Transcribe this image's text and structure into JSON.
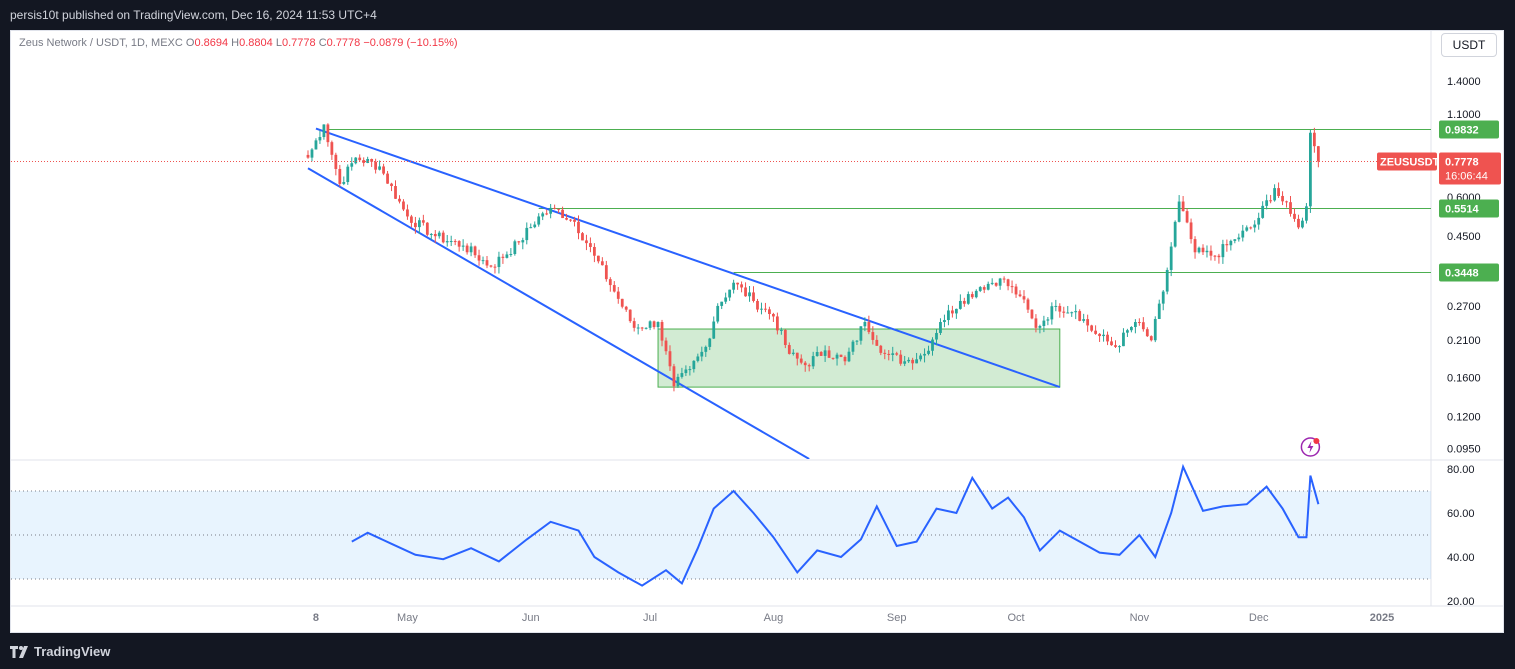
{
  "header": {
    "publish_text": "persis10t published on TradingView.com, Dec 16, 2024 11:53 UTC+4"
  },
  "legend": {
    "pair": "Zeus Network / USDT, 1D, MEXC",
    "o_label": "O",
    "o_value": "0.8694",
    "h_label": "H",
    "h_value": "0.8804",
    "l_label": "L",
    "l_value": "0.7778",
    "c_label": "C",
    "c_value": "0.7778",
    "change": "−0.0879 (−10.15%)"
  },
  "currency_button": "USDT",
  "footer": {
    "brand": "TradingView"
  },
  "colors": {
    "up": "#26a69a",
    "down": "#ef5350",
    "trend": "#2962ff",
    "level": "#4caf50",
    "rsi": "#2962ff"
  },
  "chart_data": [
    {
      "type": "candlestick",
      "symbol": "ZEUSUSDT",
      "scale": "log",
      "ylim": [
        0.088,
        1.6
      ],
      "y_ticks": [
        "1.4000",
        "1.1000",
        "0.6000",
        "0.4500",
        "0.2700",
        "0.2100",
        "0.1600",
        "0.1200",
        "0.0950"
      ],
      "x_ticks": [
        "8",
        "May",
        "Jun",
        "Jul",
        "Aug",
        "Sep",
        "Oct",
        "Nov",
        "Dec",
        "2025"
      ],
      "last_price": {
        "symbol": "ZEUSUSDT",
        "price": "0.7778",
        "countdown": "16:06:44"
      },
      "levels": [
        {
          "label": "0.9832",
          "value": 0.9832
        },
        {
          "label": "0.5514",
          "value": 0.5514
        },
        {
          "label": "0.3448",
          "value": 0.3448
        }
      ],
      "trendlines": [
        {
          "from": [
            "2024-04-08",
            0.99
          ],
          "to": [
            "2024-10-12",
            0.149
          ]
        },
        {
          "from": [
            "2024-04-06",
            0.74
          ],
          "to": [
            "2024-08-10",
            0.088
          ]
        }
      ],
      "zone": {
        "from": "2024-07-03",
        "to": "2024-10-12",
        "top": 0.228,
        "bottom": 0.149
      },
      "closes": [
        [
          "2024-04-06",
          0.8
        ],
        [
          "2024-04-10",
          1.02
        ],
        [
          "2024-04-14",
          0.66
        ],
        [
          "2024-04-18",
          0.8
        ],
        [
          "2024-04-24",
          0.75
        ],
        [
          "2024-05-01",
          0.52
        ],
        [
          "2024-05-08",
          0.45
        ],
        [
          "2024-05-15",
          0.42
        ],
        [
          "2024-05-22",
          0.36
        ],
        [
          "2024-05-29",
          0.43
        ],
        [
          "2024-06-03",
          0.52
        ],
        [
          "2024-06-07",
          0.55
        ],
        [
          "2024-06-12",
          0.5
        ],
        [
          "2024-06-17",
          0.39
        ],
        [
          "2024-06-22",
          0.3
        ],
        [
          "2024-06-27",
          0.23
        ],
        [
          "2024-07-03",
          0.24
        ],
        [
          "2024-07-07",
          0.15
        ],
        [
          "2024-07-11",
          0.17
        ],
        [
          "2024-07-15",
          0.2
        ],
        [
          "2024-07-18",
          0.27
        ],
        [
          "2024-07-22",
          0.32
        ],
        [
          "2024-07-27",
          0.28
        ],
        [
          "2024-08-01",
          0.25
        ],
        [
          "2024-08-05",
          0.19
        ],
        [
          "2024-08-09",
          0.175
        ],
        [
          "2024-08-14",
          0.195
        ],
        [
          "2024-08-19",
          0.18
        ],
        [
          "2024-08-24",
          0.24
        ],
        [
          "2024-08-29",
          0.19
        ],
        [
          "2024-09-03",
          0.18
        ],
        [
          "2024-09-08",
          0.19
        ],
        [
          "2024-09-12",
          0.24
        ],
        [
          "2024-09-17",
          0.28
        ],
        [
          "2024-09-22",
          0.31
        ],
        [
          "2024-09-27",
          0.33
        ],
        [
          "2024-10-02",
          0.29
        ],
        [
          "2024-10-06",
          0.23
        ],
        [
          "2024-10-11",
          0.27
        ],
        [
          "2024-10-16",
          0.26
        ],
        [
          "2024-10-21",
          0.22
        ],
        [
          "2024-10-26",
          0.2
        ],
        [
          "2024-10-31",
          0.24
        ],
        [
          "2024-11-04",
          0.21
        ],
        [
          "2024-11-07",
          0.3
        ],
        [
          "2024-11-11",
          0.58
        ],
        [
          "2024-11-15",
          0.4
        ],
        [
          "2024-11-20",
          0.39
        ],
        [
          "2024-11-25",
          0.44
        ],
        [
          "2024-11-30",
          0.49
        ],
        [
          "2024-12-05",
          0.64
        ],
        [
          "2024-12-09",
          0.53
        ],
        [
          "2024-12-11",
          0.48
        ],
        [
          "2024-12-13",
          0.56
        ],
        [
          "2024-12-14",
          0.96
        ],
        [
          "2024-12-15",
          0.87
        ],
        [
          "2024-12-16",
          0.7778
        ]
      ]
    },
    {
      "type": "line",
      "name": "RSI",
      "ylim": [
        20,
        80
      ],
      "y_ticks": [
        "80.00",
        "60.00",
        "40.00",
        "20.00"
      ],
      "band": [
        30,
        70
      ],
      "midline": 50,
      "points": [
        [
          "2024-04-17",
          47
        ],
        [
          "2024-04-21",
          51
        ],
        [
          "2024-04-27",
          46
        ],
        [
          "2024-05-03",
          41
        ],
        [
          "2024-05-10",
          39
        ],
        [
          "2024-05-17",
          44
        ],
        [
          "2024-05-24",
          38
        ],
        [
          "2024-05-31",
          48
        ],
        [
          "2024-06-06",
          56
        ],
        [
          "2024-06-13",
          52
        ],
        [
          "2024-06-17",
          40
        ],
        [
          "2024-06-23",
          33
        ],
        [
          "2024-06-29",
          27
        ],
        [
          "2024-07-05",
          34
        ],
        [
          "2024-07-09",
          28
        ],
        [
          "2024-07-13",
          44
        ],
        [
          "2024-07-17",
          62
        ],
        [
          "2024-07-22",
          70
        ],
        [
          "2024-07-27",
          60
        ],
        [
          "2024-08-01",
          49
        ],
        [
          "2024-08-07",
          33
        ],
        [
          "2024-08-12",
          43
        ],
        [
          "2024-08-18",
          40
        ],
        [
          "2024-08-23",
          48
        ],
        [
          "2024-08-27",
          63
        ],
        [
          "2024-09-01",
          45
        ],
        [
          "2024-09-06",
          47
        ],
        [
          "2024-09-11",
          62
        ],
        [
          "2024-09-16",
          60
        ],
        [
          "2024-09-20",
          76
        ],
        [
          "2024-09-25",
          62
        ],
        [
          "2024-09-29",
          67
        ],
        [
          "2024-10-03",
          58
        ],
        [
          "2024-10-07",
          43
        ],
        [
          "2024-10-12",
          52
        ],
        [
          "2024-10-17",
          47
        ],
        [
          "2024-10-22",
          42
        ],
        [
          "2024-10-27",
          41
        ],
        [
          "2024-11-01",
          50
        ],
        [
          "2024-11-05",
          40
        ],
        [
          "2024-11-09",
          60
        ],
        [
          "2024-11-12",
          81
        ],
        [
          "2024-11-17",
          61
        ],
        [
          "2024-11-22",
          63
        ],
        [
          "2024-11-28",
          64
        ],
        [
          "2024-12-03",
          72
        ],
        [
          "2024-12-07",
          62
        ],
        [
          "2024-12-11",
          49
        ],
        [
          "2024-12-13",
          49
        ],
        [
          "2024-12-14",
          77
        ],
        [
          "2024-12-16",
          64
        ]
      ]
    }
  ]
}
